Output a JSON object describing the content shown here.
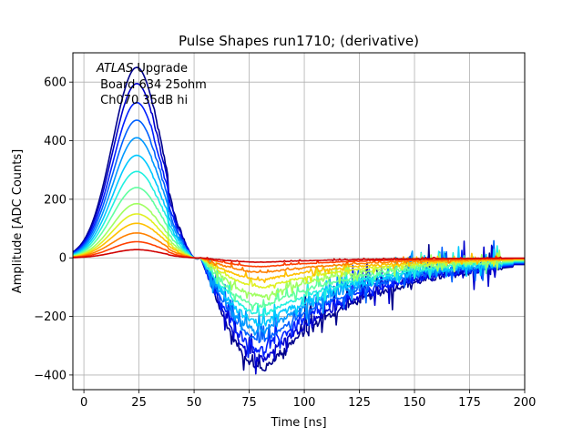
{
  "chart_data": {
    "type": "line",
    "title": "Pulse Shapes run1710; (derivative)",
    "xlabel": "Time [ns]",
    "ylabel": "Amplitude [ADC Counts]",
    "xlim": [
      -5,
      200
    ],
    "ylim": [
      -450,
      700
    ],
    "xticks": [
      0,
      25,
      50,
      75,
      100,
      125,
      150,
      175,
      200
    ],
    "yticks": [
      -400,
      -200,
      0,
      200,
      400,
      600
    ],
    "grid": true,
    "annotation": {
      "atlas": "ATLAS",
      "line1_rest": " Upgrade",
      "line2": " Board 634 25ohm",
      "line3": " Ch070 35dB hi"
    },
    "series": [
      {
        "peak": 650,
        "trough": -380,
        "color": "#00008b"
      },
      {
        "peak": 595,
        "trough": -345,
        "color": "#0000cd"
      },
      {
        "peak": 530,
        "trough": -315,
        "color": "#0020ff"
      },
      {
        "peak": 470,
        "trough": -285,
        "color": "#0060ff"
      },
      {
        "peak": 410,
        "trough": -255,
        "color": "#0098ff"
      },
      {
        "peak": 350,
        "trough": -225,
        "color": "#00c8ff"
      },
      {
        "peak": 295,
        "trough": -195,
        "color": "#20f0e0"
      },
      {
        "peak": 240,
        "trough": -165,
        "color": "#60ffa0"
      },
      {
        "peak": 185,
        "trough": -130,
        "color": "#a0ff60"
      },
      {
        "peak": 150,
        "trough": -100,
        "color": "#e0f020"
      },
      {
        "peak": 118,
        "trough": -75,
        "color": "#ffc000"
      },
      {
        "peak": 85,
        "trough": -50,
        "color": "#ff8000"
      },
      {
        "peak": 55,
        "trough": -30,
        "color": "#ff4000"
      },
      {
        "peak": 28,
        "trough": -15,
        "color": "#d00000"
      }
    ]
  }
}
